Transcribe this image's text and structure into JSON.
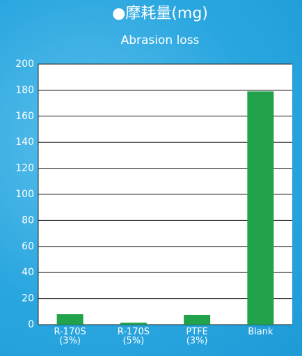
{
  "chart_data": {
    "type": "bar",
    "title": "●摩耗量(mg)",
    "subtitle": "Abrasion loss",
    "categories": [
      "R-170S\n(3%)",
      "R-170S\n(5%)",
      "PTFE\n(3%)",
      "Blank"
    ],
    "values": [
      8,
      1.5,
      7.5,
      179
    ],
    "color": "#22a24a",
    "ylim": [
      0,
      200
    ],
    "yticks": [
      0,
      20,
      40,
      60,
      80,
      100,
      120,
      140,
      160,
      180,
      200
    ],
    "grid": true
  }
}
